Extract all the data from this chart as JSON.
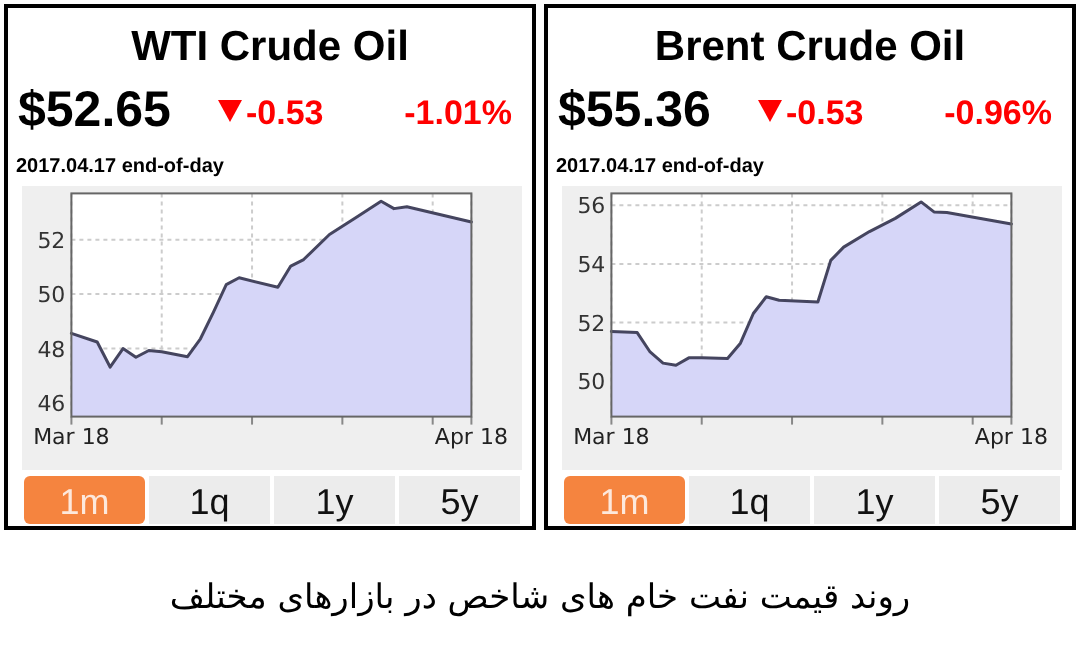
{
  "chart_data": [
    {
      "type": "area",
      "title": "WTI Crude Oil",
      "subtitle": "2017.04.17 end-of-day",
      "annotations": [
        "$52.65",
        "-0.53",
        "-1.01%",
        "1m",
        "1q",
        "1y",
        "5y"
      ],
      "x": [
        "2017-03-18",
        "2017-03-20",
        "2017-03-21",
        "2017-03-22",
        "2017-03-23",
        "2017-03-24",
        "2017-03-25",
        "2017-03-27",
        "2017-03-28",
        "2017-03-29",
        "2017-03-30",
        "2017-03-31",
        "2017-04-03",
        "2017-04-04",
        "2017-04-05",
        "2017-04-07",
        "2017-04-09",
        "2017-04-11",
        "2017-04-12",
        "2017-04-13",
        "2017-04-18"
      ],
      "series": [
        {
          "color": "#d6d6f8",
          "values": [
            48.56,
            48.24,
            47.32,
            48.0,
            47.68,
            47.93,
            47.88,
            47.7,
            48.36,
            49.33,
            50.35,
            50.6,
            50.25,
            51.03,
            51.27,
            52.19,
            52.8,
            53.41,
            53.14,
            53.21,
            52.65
          ]
        }
      ],
      "xlim": [
        "2017-03-18",
        "2017-04-18"
      ],
      "xticks": [
        {
          "value": "2017-03-18",
          "label": "Mar 18"
        },
        {
          "value": "2017-03-25",
          "label": null
        },
        {
          "value": "2017-04-01",
          "label": null
        },
        {
          "value": "2017-04-08",
          "label": null
        },
        {
          "value": "2017-04-15",
          "label": null
        },
        {
          "value": "2017-04-18",
          "label": "Apr 18"
        }
      ],
      "ylim": [
        45.5,
        53.7
      ],
      "yticks": [
        46,
        48,
        50,
        52
      ],
      "grid": true
    },
    {
      "type": "area",
      "title": "Brent Crude Oil",
      "subtitle": "2017.04.17 end-of-day",
      "annotations": [
        "$55.36",
        "-0.53",
        "-0.96%",
        "1m",
        "1q",
        "1y",
        "5y"
      ],
      "x": [
        "2017-03-18",
        "2017-03-20",
        "2017-03-21",
        "2017-03-22",
        "2017-03-23",
        "2017-03-24",
        "2017-03-25",
        "2017-03-27",
        "2017-03-28",
        "2017-03-29",
        "2017-03-30",
        "2017-03-31",
        "2017-04-03",
        "2017-04-04",
        "2017-04-05",
        "2017-04-07",
        "2017-04-09",
        "2017-04-11",
        "2017-04-12",
        "2017-04-13",
        "2017-04-18"
      ],
      "series": [
        {
          "color": "#d6d6f8",
          "values": [
            51.7,
            51.66,
            51.0,
            50.62,
            50.55,
            50.8,
            50.8,
            50.78,
            51.3,
            52.31,
            52.88,
            52.76,
            52.7,
            54.12,
            54.57,
            55.1,
            55.55,
            56.11,
            55.77,
            55.75,
            55.36
          ]
        }
      ],
      "xlim": [
        "2017-03-18",
        "2017-04-18"
      ],
      "xticks": [
        {
          "value": "2017-03-18",
          "label": "Mar 18"
        },
        {
          "value": "2017-03-25",
          "label": null
        },
        {
          "value": "2017-04-01",
          "label": null
        },
        {
          "value": "2017-04-08",
          "label": null
        },
        {
          "value": "2017-04-15",
          "label": null
        },
        {
          "value": "2017-04-18",
          "label": "Apr 18"
        }
      ],
      "ylim": [
        48.8,
        56.4
      ],
      "yticks": [
        50,
        52,
        54,
        56
      ],
      "grid": true
    },
    {
      "type": "other",
      "title": "روند قیمت نفت خام های شاخص در بازارهای مختلف"
    }
  ]
}
